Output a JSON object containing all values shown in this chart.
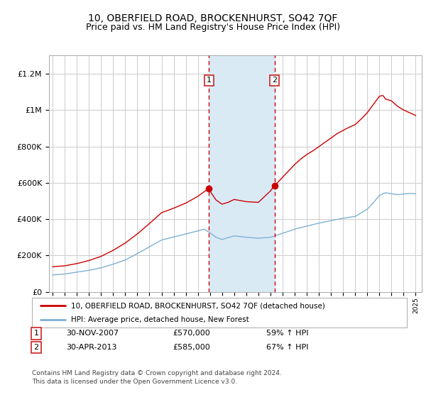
{
  "title": "10, OBERFIELD ROAD, BROCKENHURST, SO42 7QF",
  "subtitle": "Price paid vs. HM Land Registry's House Price Index (HPI)",
  "title_fontsize": 10,
  "subtitle_fontsize": 9,
  "ylim": [
    0,
    1300000
  ],
  "yticks": [
    0,
    200000,
    400000,
    600000,
    800000,
    1000000,
    1200000
  ],
  "ytick_labels": [
    "£0",
    "£200K",
    "£400K",
    "£600K",
    "£800K",
    "£1M",
    "£1.2M"
  ],
  "background_color": "#ffffff",
  "plot_bg_color": "#ffffff",
  "grid_color": "#cccccc",
  "purchase1_year": 2007.917,
  "purchase1_price": 570000,
  "purchase2_year": 2013.333,
  "purchase2_price": 585000,
  "shade_color": "#daeaf5",
  "red_line_color": "#cc0000",
  "blue_line_color": "#7eb0d4",
  "dashed_line_color": "#cc0000",
  "legend_label_red": "10, OBERFIELD ROAD, BROCKENHURST, SO42 7QF (detached house)",
  "legend_label_blue": "HPI: Average price, detached house, New Forest",
  "footer1": "Contains HM Land Registry data © Crown copyright and database right 2024.",
  "footer2": "This data is licensed under the Open Government Licence v3.0.",
  "annotation1_date": "30-NOV-2007",
  "annotation1_price": "£570,000",
  "annotation1_pct": "59% ↑ HPI",
  "annotation2_date": "30-APR-2013",
  "annotation2_price": "£585,000",
  "annotation2_pct": "67% ↑ HPI",
  "xlim_start": 1995.0,
  "xlim_end": 2025.5
}
